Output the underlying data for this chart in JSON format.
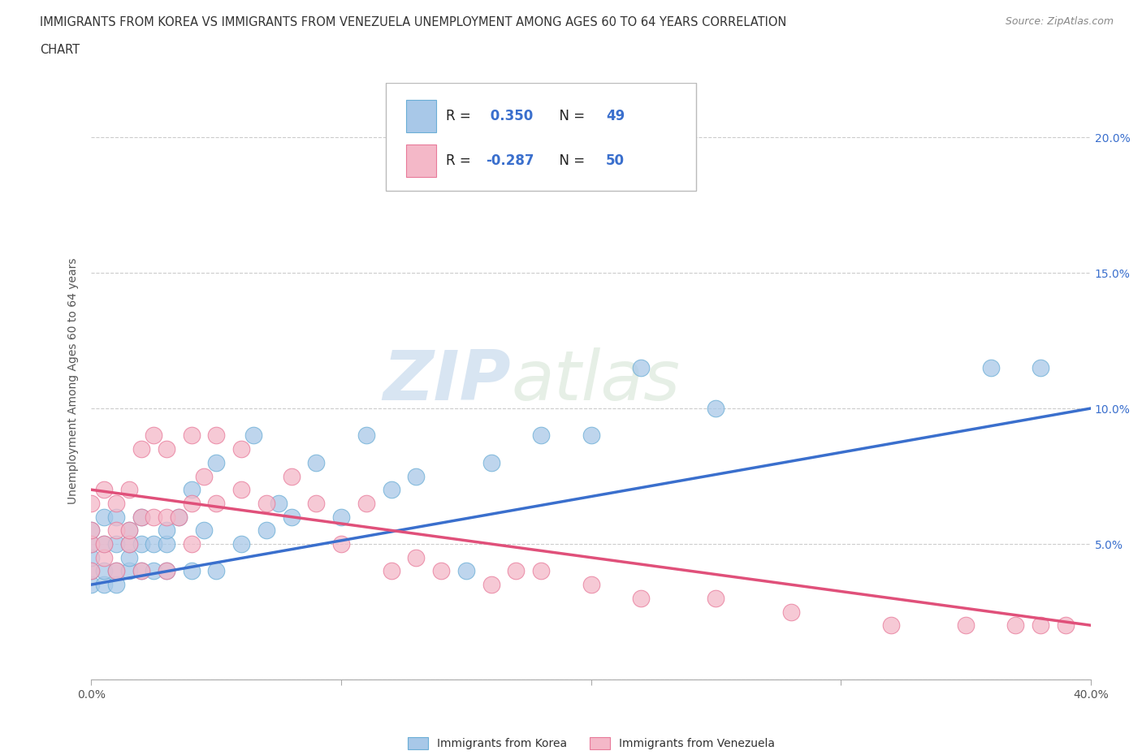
{
  "title_line1": "IMMIGRANTS FROM KOREA VS IMMIGRANTS FROM VENEZUELA UNEMPLOYMENT AMONG AGES 60 TO 64 YEARS CORRELATION",
  "title_line2": "CHART",
  "source": "Source: ZipAtlas.com",
  "ylabel": "Unemployment Among Ages 60 to 64 years",
  "xlim": [
    0.0,
    0.4
  ],
  "ylim": [
    0.0,
    0.22
  ],
  "x_ticks": [
    0.0,
    0.1,
    0.2,
    0.3,
    0.4
  ],
  "y_ticks": [
    0.0,
    0.05,
    0.1,
    0.15,
    0.2
  ],
  "x_tick_labels": [
    "0.0%",
    "",
    "",
    "",
    "40.0%"
  ],
  "y_tick_labels": [
    "",
    "5.0%",
    "10.0%",
    "15.0%",
    "20.0%"
  ],
  "korea_color": "#a8c8e8",
  "korea_edge_color": "#6baed6",
  "venezuela_color": "#f4b8c8",
  "venezuela_edge_color": "#e87a9a",
  "korea_R": 0.35,
  "korea_N": 49,
  "venezuela_R": -0.287,
  "venezuela_N": 50,
  "korea_line_color": "#3a6fcd",
  "venezuela_line_color": "#e0507a",
  "watermark_zip": "ZIP",
  "watermark_atlas": "atlas",
  "background_color": "#ffffff",
  "grid_color": "#cccccc",
  "legend_R_color": "#3a6fcd",
  "legend_N_color": "#3a6fcd",
  "korea_x": [
    0.0,
    0.0,
    0.0,
    0.0,
    0.0,
    0.005,
    0.005,
    0.005,
    0.005,
    0.01,
    0.01,
    0.01,
    0.01,
    0.015,
    0.015,
    0.015,
    0.015,
    0.02,
    0.02,
    0.02,
    0.025,
    0.025,
    0.03,
    0.03,
    0.03,
    0.035,
    0.04,
    0.04,
    0.045,
    0.05,
    0.05,
    0.06,
    0.065,
    0.07,
    0.075,
    0.08,
    0.09,
    0.1,
    0.11,
    0.12,
    0.13,
    0.15,
    0.16,
    0.18,
    0.2,
    0.22,
    0.25,
    0.36,
    0.38
  ],
  "korea_y": [
    0.035,
    0.04,
    0.045,
    0.05,
    0.055,
    0.035,
    0.04,
    0.05,
    0.06,
    0.035,
    0.04,
    0.05,
    0.06,
    0.04,
    0.045,
    0.05,
    0.055,
    0.04,
    0.05,
    0.06,
    0.04,
    0.05,
    0.04,
    0.05,
    0.055,
    0.06,
    0.04,
    0.07,
    0.055,
    0.04,
    0.08,
    0.05,
    0.09,
    0.055,
    0.065,
    0.06,
    0.08,
    0.06,
    0.09,
    0.07,
    0.075,
    0.04,
    0.08,
    0.09,
    0.09,
    0.115,
    0.1,
    0.115,
    0.115
  ],
  "venezuela_x": [
    0.0,
    0.0,
    0.0,
    0.0,
    0.005,
    0.005,
    0.005,
    0.01,
    0.01,
    0.01,
    0.015,
    0.015,
    0.015,
    0.02,
    0.02,
    0.02,
    0.025,
    0.025,
    0.03,
    0.03,
    0.03,
    0.035,
    0.04,
    0.04,
    0.04,
    0.045,
    0.05,
    0.05,
    0.06,
    0.06,
    0.07,
    0.08,
    0.09,
    0.1,
    0.11,
    0.12,
    0.13,
    0.14,
    0.16,
    0.17,
    0.18,
    0.2,
    0.22,
    0.25,
    0.28,
    0.32,
    0.35,
    0.37,
    0.38,
    0.39
  ],
  "venezuela_y": [
    0.04,
    0.05,
    0.055,
    0.065,
    0.045,
    0.05,
    0.07,
    0.04,
    0.055,
    0.065,
    0.05,
    0.055,
    0.07,
    0.04,
    0.06,
    0.085,
    0.06,
    0.09,
    0.04,
    0.06,
    0.085,
    0.06,
    0.05,
    0.065,
    0.09,
    0.075,
    0.065,
    0.09,
    0.07,
    0.085,
    0.065,
    0.075,
    0.065,
    0.05,
    0.065,
    0.04,
    0.045,
    0.04,
    0.035,
    0.04,
    0.04,
    0.035,
    0.03,
    0.03,
    0.025,
    0.02,
    0.02,
    0.02,
    0.02,
    0.02
  ],
  "korea_line_x0": 0.0,
  "korea_line_y0": 0.035,
  "korea_line_x1": 0.4,
  "korea_line_y1": 0.1,
  "venezuela_line_x0": 0.0,
  "venezuela_line_y0": 0.07,
  "venezuela_line_x1": 0.4,
  "venezuela_line_y1": 0.02
}
